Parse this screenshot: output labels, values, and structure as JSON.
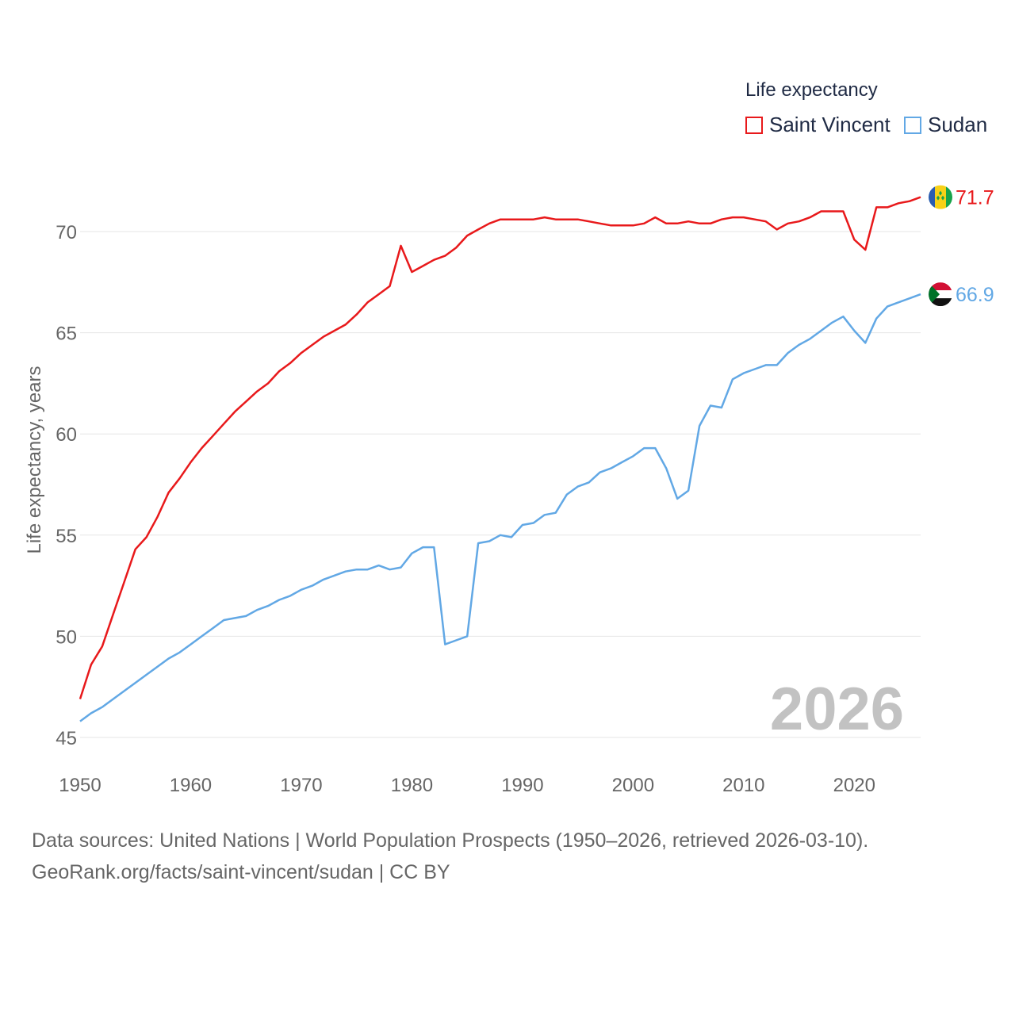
{
  "chart_data": {
    "type": "line",
    "legend_title": "Life expectancy",
    "ylabel": "Life expectancy, years",
    "xlabel": "",
    "xlim": [
      1950,
      2026
    ],
    "ylim": [
      45,
      73
    ],
    "x_ticks": [
      1950,
      1960,
      1970,
      1980,
      1990,
      2000,
      2010,
      2020
    ],
    "y_ticks": [
      45,
      50,
      55,
      60,
      65,
      70
    ],
    "year_watermark": "2026",
    "x": [
      1950,
      1951,
      1952,
      1953,
      1954,
      1955,
      1956,
      1957,
      1958,
      1959,
      1960,
      1961,
      1962,
      1963,
      1964,
      1965,
      1966,
      1967,
      1968,
      1969,
      1970,
      1971,
      1972,
      1973,
      1974,
      1975,
      1976,
      1977,
      1978,
      1979,
      1980,
      1981,
      1982,
      1983,
      1984,
      1985,
      1986,
      1987,
      1988,
      1989,
      1990,
      1991,
      1992,
      1993,
      1994,
      1995,
      1996,
      1997,
      1998,
      1999,
      2000,
      2001,
      2002,
      2003,
      2004,
      2005,
      2006,
      2007,
      2008,
      2009,
      2010,
      2011,
      2012,
      2013,
      2014,
      2015,
      2016,
      2017,
      2018,
      2019,
      2020,
      2021,
      2022,
      2023,
      2024,
      2025,
      2026
    ],
    "series": [
      {
        "name": "Saint Vincent",
        "color": "#e8191b",
        "end_label": "71.7",
        "flag": "saint-vincent-flag-icon",
        "values": [
          46.9,
          48.6,
          49.5,
          51.1,
          52.7,
          54.3,
          54.9,
          55.9,
          57.1,
          57.8,
          58.6,
          59.3,
          59.9,
          60.5,
          61.1,
          61.6,
          62.1,
          62.5,
          63.1,
          63.5,
          64.0,
          64.4,
          64.8,
          65.1,
          65.4,
          65.9,
          66.5,
          66.9,
          67.3,
          69.3,
          68.0,
          68.3,
          68.6,
          68.8,
          69.2,
          69.8,
          70.1,
          70.4,
          70.6,
          70.6,
          70.6,
          70.6,
          70.7,
          70.6,
          70.6,
          70.6,
          70.5,
          70.4,
          70.3,
          70.3,
          70.3,
          70.4,
          70.7,
          70.4,
          70.4,
          70.5,
          70.4,
          70.4,
          70.6,
          70.7,
          70.7,
          70.6,
          70.5,
          70.1,
          70.4,
          70.5,
          70.7,
          71.0,
          71.0,
          71.0,
          69.6,
          69.1,
          71.2,
          71.2,
          71.4,
          71.5,
          71.7
        ]
      },
      {
        "name": "Sudan",
        "color": "#62a8e5",
        "end_label": "66.9",
        "flag": "sudan-flag-icon",
        "values": [
          45.8,
          46.2,
          46.5,
          46.9,
          47.3,
          47.7,
          48.1,
          48.5,
          48.9,
          49.2,
          49.6,
          50.0,
          50.4,
          50.8,
          50.9,
          51.0,
          51.3,
          51.5,
          51.8,
          52.0,
          52.3,
          52.5,
          52.8,
          53.0,
          53.2,
          53.3,
          53.3,
          53.5,
          53.3,
          53.4,
          54.1,
          54.4,
          54.4,
          49.6,
          49.8,
          50.0,
          54.6,
          54.7,
          55.0,
          54.9,
          55.5,
          55.6,
          56.0,
          56.1,
          57.0,
          57.4,
          57.6,
          58.1,
          58.3,
          58.6,
          58.9,
          59.3,
          59.3,
          58.3,
          56.8,
          57.2,
          60.4,
          61.4,
          61.3,
          62.7,
          63.0,
          63.2,
          63.4,
          63.4,
          64.0,
          64.4,
          64.7,
          65.1,
          65.5,
          65.8,
          65.1,
          64.5,
          65.7,
          66.3,
          66.5,
          66.7,
          66.9
        ]
      }
    ]
  },
  "source": {
    "line1": "Data sources: United Nations | World Population Prospects (1950–2026, retrieved 2026-03-10).",
    "line2": "GeoRank.org/facts/saint-vincent/sudan | CC BY"
  }
}
